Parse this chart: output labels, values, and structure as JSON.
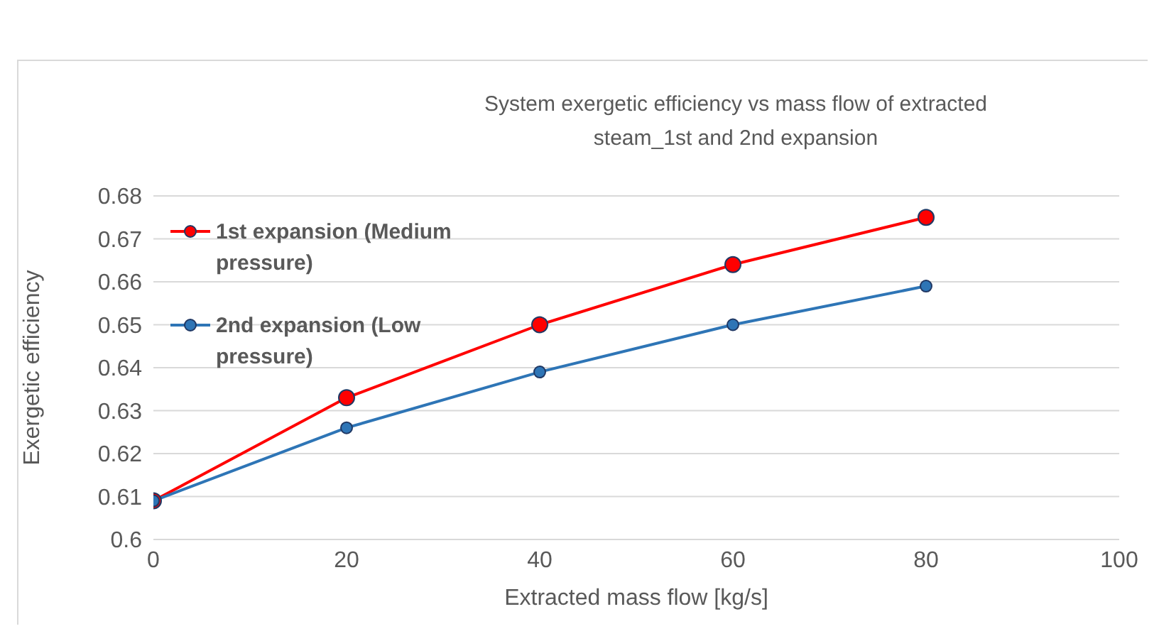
{
  "chart_data": {
    "type": "line",
    "title": "System exergetic efficiency vs mass flow of extracted  steam_1st and 2nd expansion",
    "xlabel": "Extracted mass flow [kg/s]",
    "ylabel": "Exergetic efficiency",
    "x": [
      0,
      20,
      40,
      60,
      80
    ],
    "series": [
      {
        "name": "1st expansion (Medium pressure)",
        "color": "#ff0000",
        "values": [
          0.609,
          0.633,
          0.65,
          0.664,
          0.675
        ]
      },
      {
        "name": "2nd expansion (Low pressure)",
        "color": "#2e75b6",
        "values": [
          0.609,
          0.626,
          0.639,
          0.65,
          0.659
        ]
      }
    ],
    "xlim": [
      0,
      100
    ],
    "xticks": [
      0,
      20,
      40,
      60,
      80,
      100
    ],
    "ylim": [
      0.6,
      0.68
    ],
    "yticks": [
      0.6,
      0.61,
      0.62,
      0.63,
      0.64,
      0.65,
      0.66,
      0.67,
      0.68
    ],
    "grid": "y",
    "legend": "top left",
    "marker": "circle",
    "line_style": "solid"
  }
}
